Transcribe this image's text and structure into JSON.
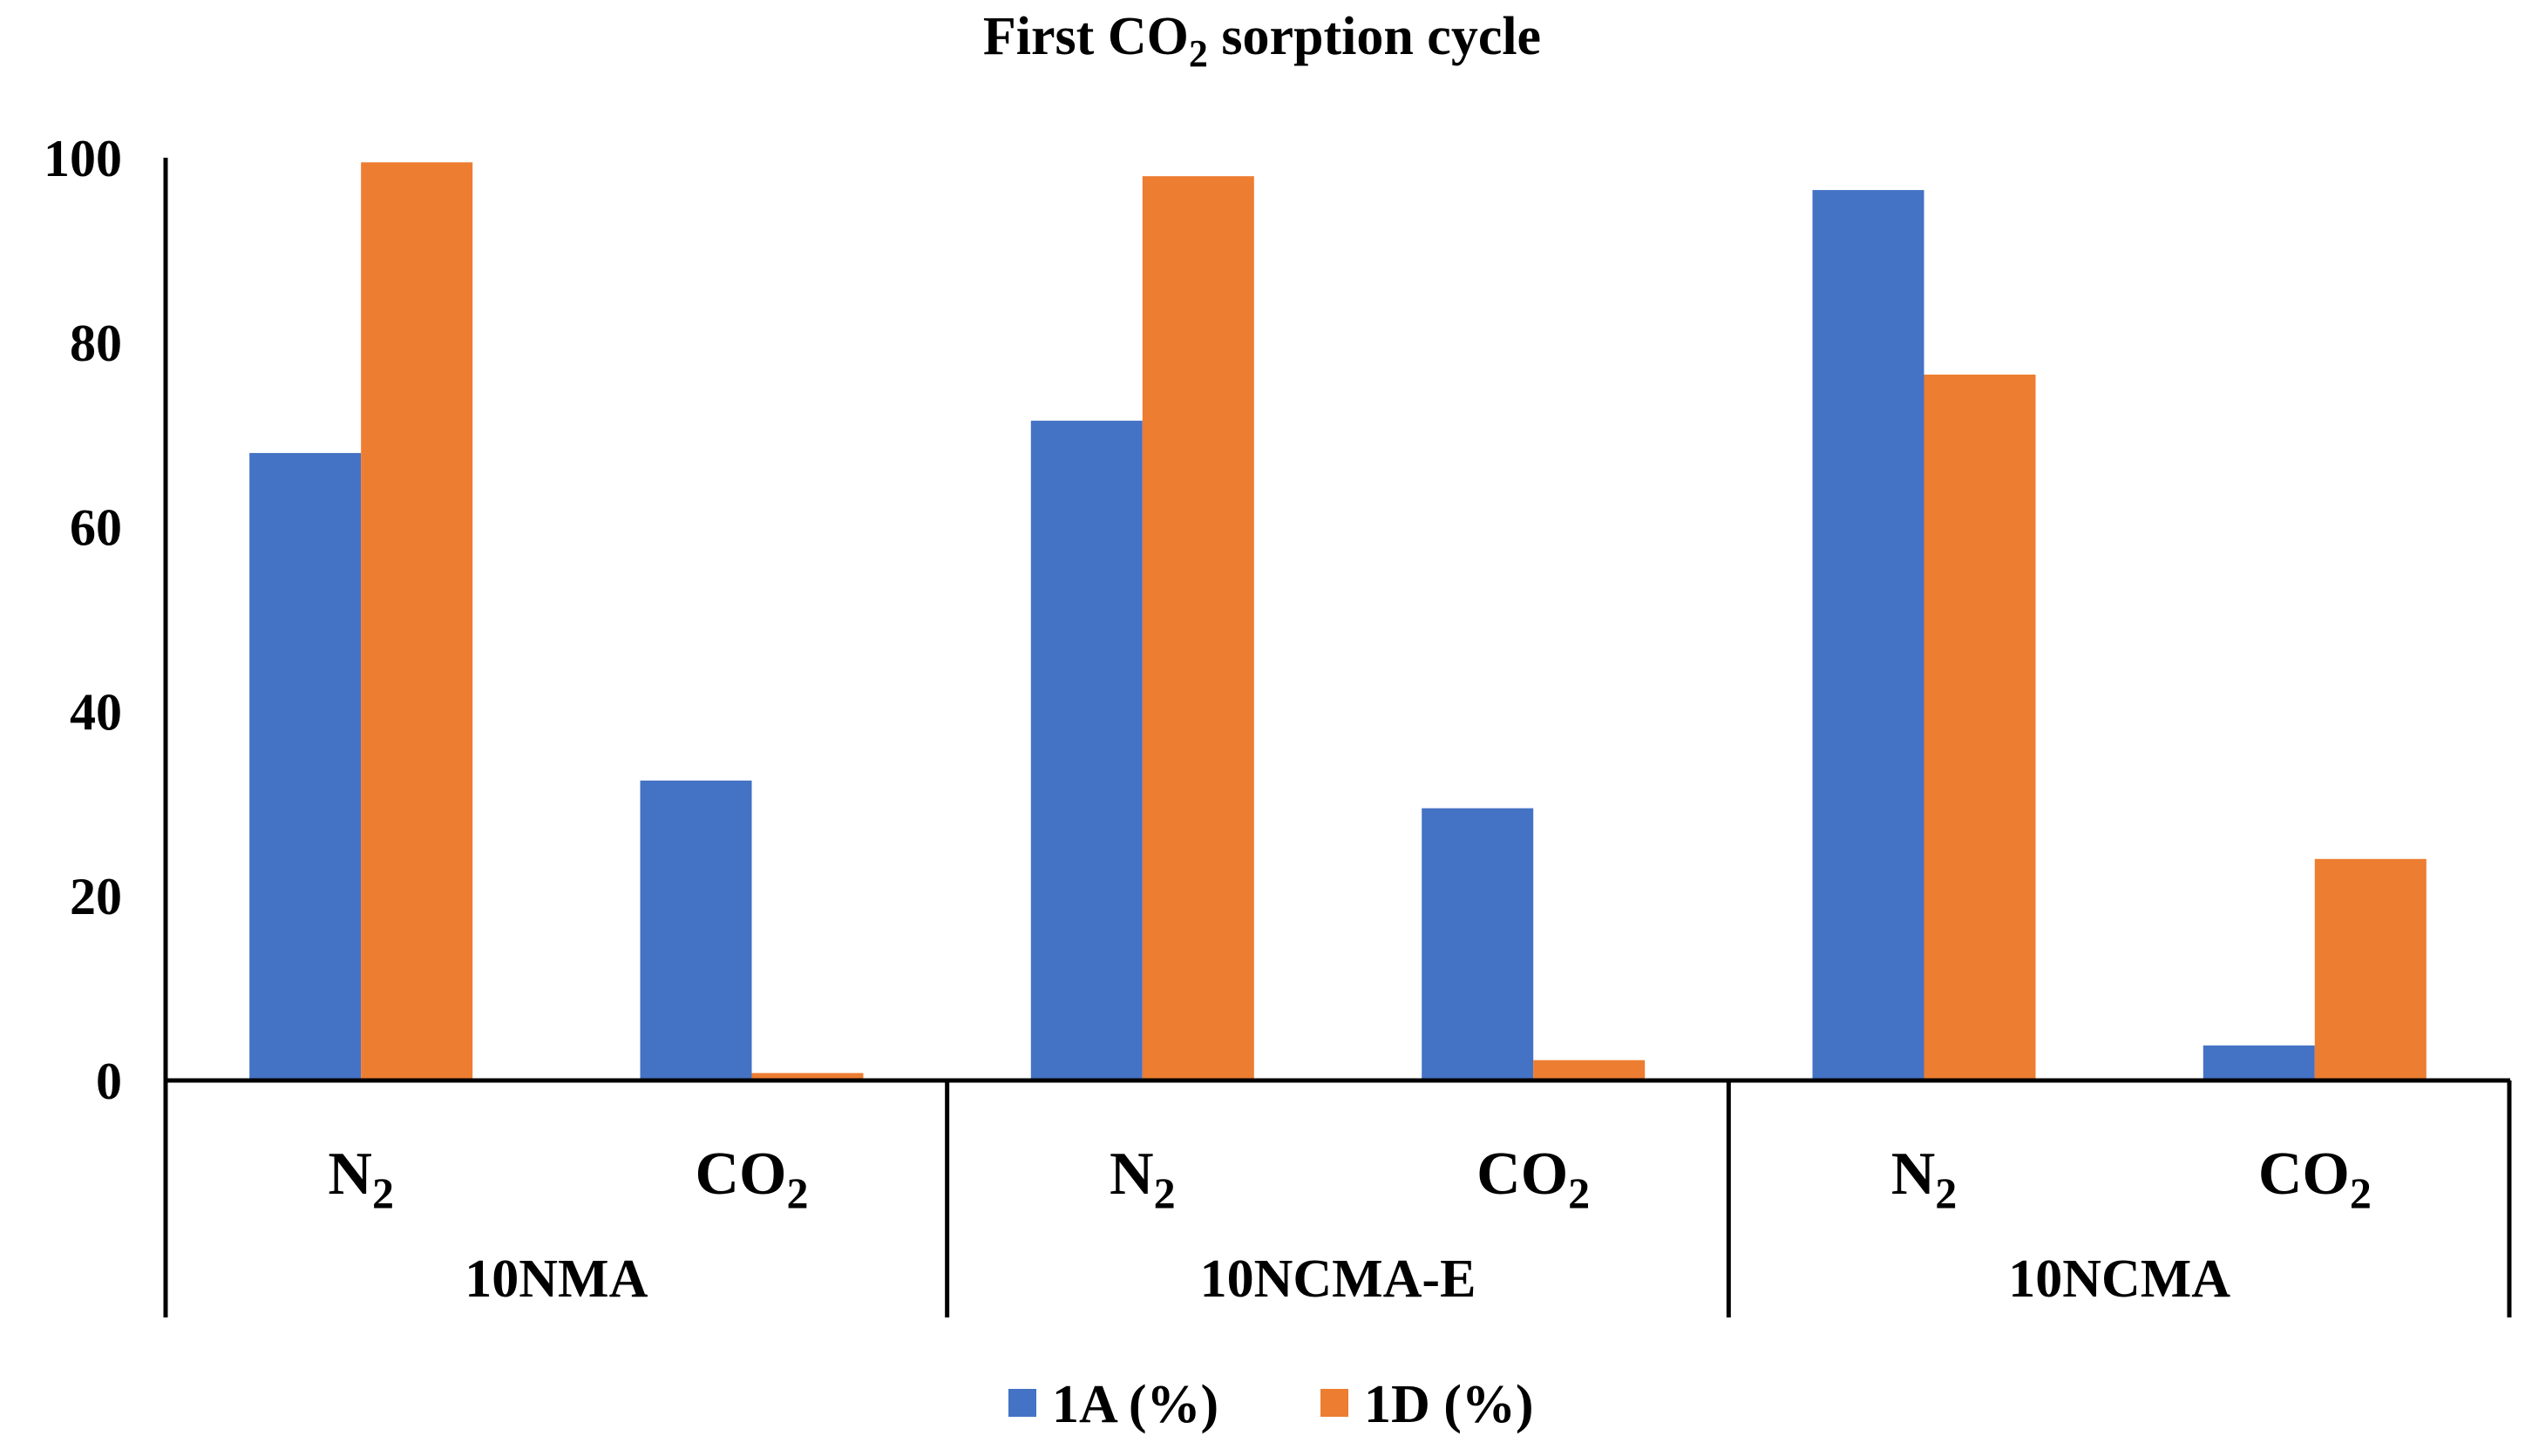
{
  "chart_data": {
    "type": "bar",
    "title": "First CO",
    "title_sub": "2",
    "title_suffix": " sorption cycle",
    "ylim": [
      0,
      100
    ],
    "yticks": [
      "0",
      "20",
      "40",
      "60",
      "80",
      "100"
    ],
    "groups": [
      {
        "label": "10NMA",
        "categories": [
          {
            "main": "N",
            "sub": "2"
          },
          {
            "main": "CO",
            "sub": "2"
          }
        ]
      },
      {
        "label": "10NCMA-E",
        "categories": [
          {
            "main": "N",
            "sub": "2"
          },
          {
            "main": "CO",
            "sub": "2"
          }
        ]
      },
      {
        "label": "10NCMA",
        "categories": [
          {
            "main": "N",
            "sub": "2"
          },
          {
            "main": "CO",
            "sub": "2"
          }
        ]
      }
    ],
    "series": [
      {
        "name": "1A (%)",
        "color": "#4472C4",
        "values": [
          68,
          32.5,
          71.5,
          29.5,
          96.5,
          3.8
        ]
      },
      {
        "name": "1D (%)",
        "color": "#ED7D31",
        "values": [
          99.5,
          0.8,
          98,
          2.2,
          76.5,
          24
        ]
      }
    ],
    "legend_position": "bottom"
  }
}
